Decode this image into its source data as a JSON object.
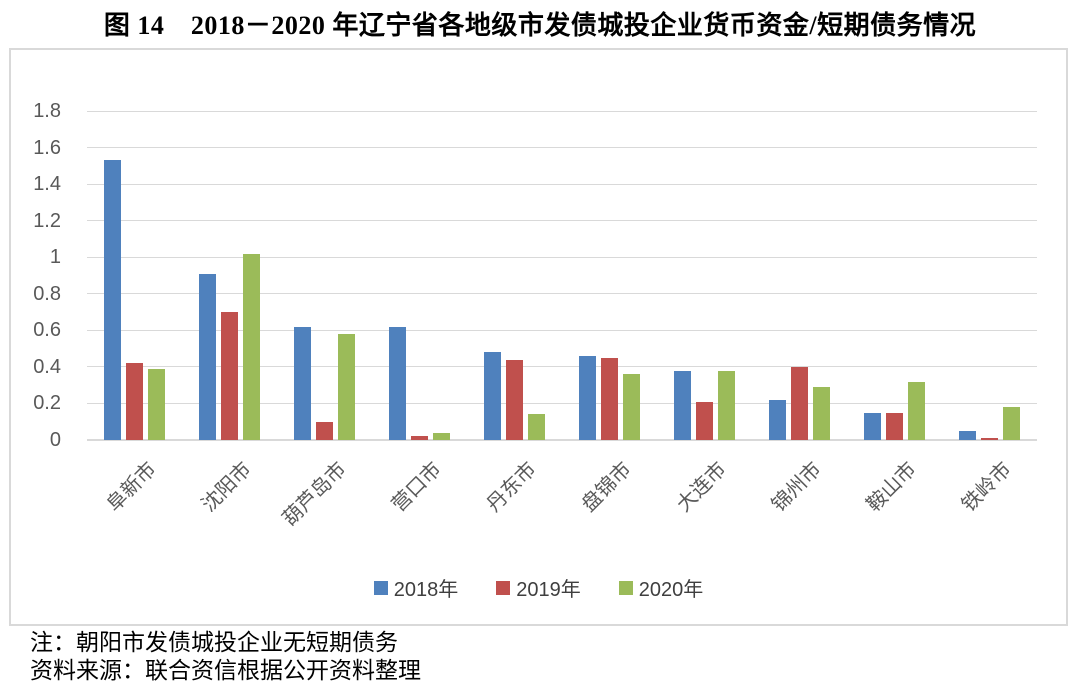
{
  "title": "图 14　2018－2020 年辽宁省各地级市发债城投企业货币资金/短期债务情况",
  "chart_data": {
    "type": "bar",
    "title": "图 14　2018－2020 年辽宁省各地级市发债城投企业货币资金/短期债务情况",
    "categories": [
      "阜新市",
      "沈阳市",
      "葫芦岛市",
      "营口市",
      "丹东市",
      "盘锦市",
      "大连市",
      "锦州市",
      "鞍山市",
      "铁岭市"
    ],
    "series": [
      {
        "name": "2018年",
        "color": "#4F81BD",
        "values": [
          1.53,
          0.91,
          0.62,
          0.62,
          0.48,
          0.46,
          0.38,
          0.22,
          0.15,
          0.05
        ]
      },
      {
        "name": "2019年",
        "color": "#C0504D",
        "values": [
          0.42,
          0.7,
          0.1,
          0.02,
          0.44,
          0.45,
          0.21,
          0.4,
          0.15,
          0.01
        ]
      },
      {
        "name": "2020年",
        "color": "#9BBB59",
        "values": [
          0.39,
          1.02,
          0.58,
          0.04,
          0.14,
          0.36,
          0.38,
          0.29,
          0.32,
          0.18
        ]
      }
    ],
    "xlabel": "",
    "ylabel": "",
    "ylim": [
      0,
      1.8
    ],
    "ytick_step": 0.2,
    "yticks": [
      "0",
      "0.2",
      "0.4",
      "0.6",
      "0.8",
      "1",
      "1.2",
      "1.4",
      "1.6",
      "1.8"
    ],
    "grid": true,
    "xtick_rotation": 45,
    "legend_position": "bottom"
  },
  "colors": {
    "gridline": "#D9D9D9",
    "axis_text": "#595959",
    "legend_text": "#3F3F3F",
    "box_border": "#D9D9D9"
  },
  "notes": {
    "note": "注：朝阳市发债城投企业无短期债务",
    "source": "资料来源：联合资信根据公开资料整理"
  }
}
